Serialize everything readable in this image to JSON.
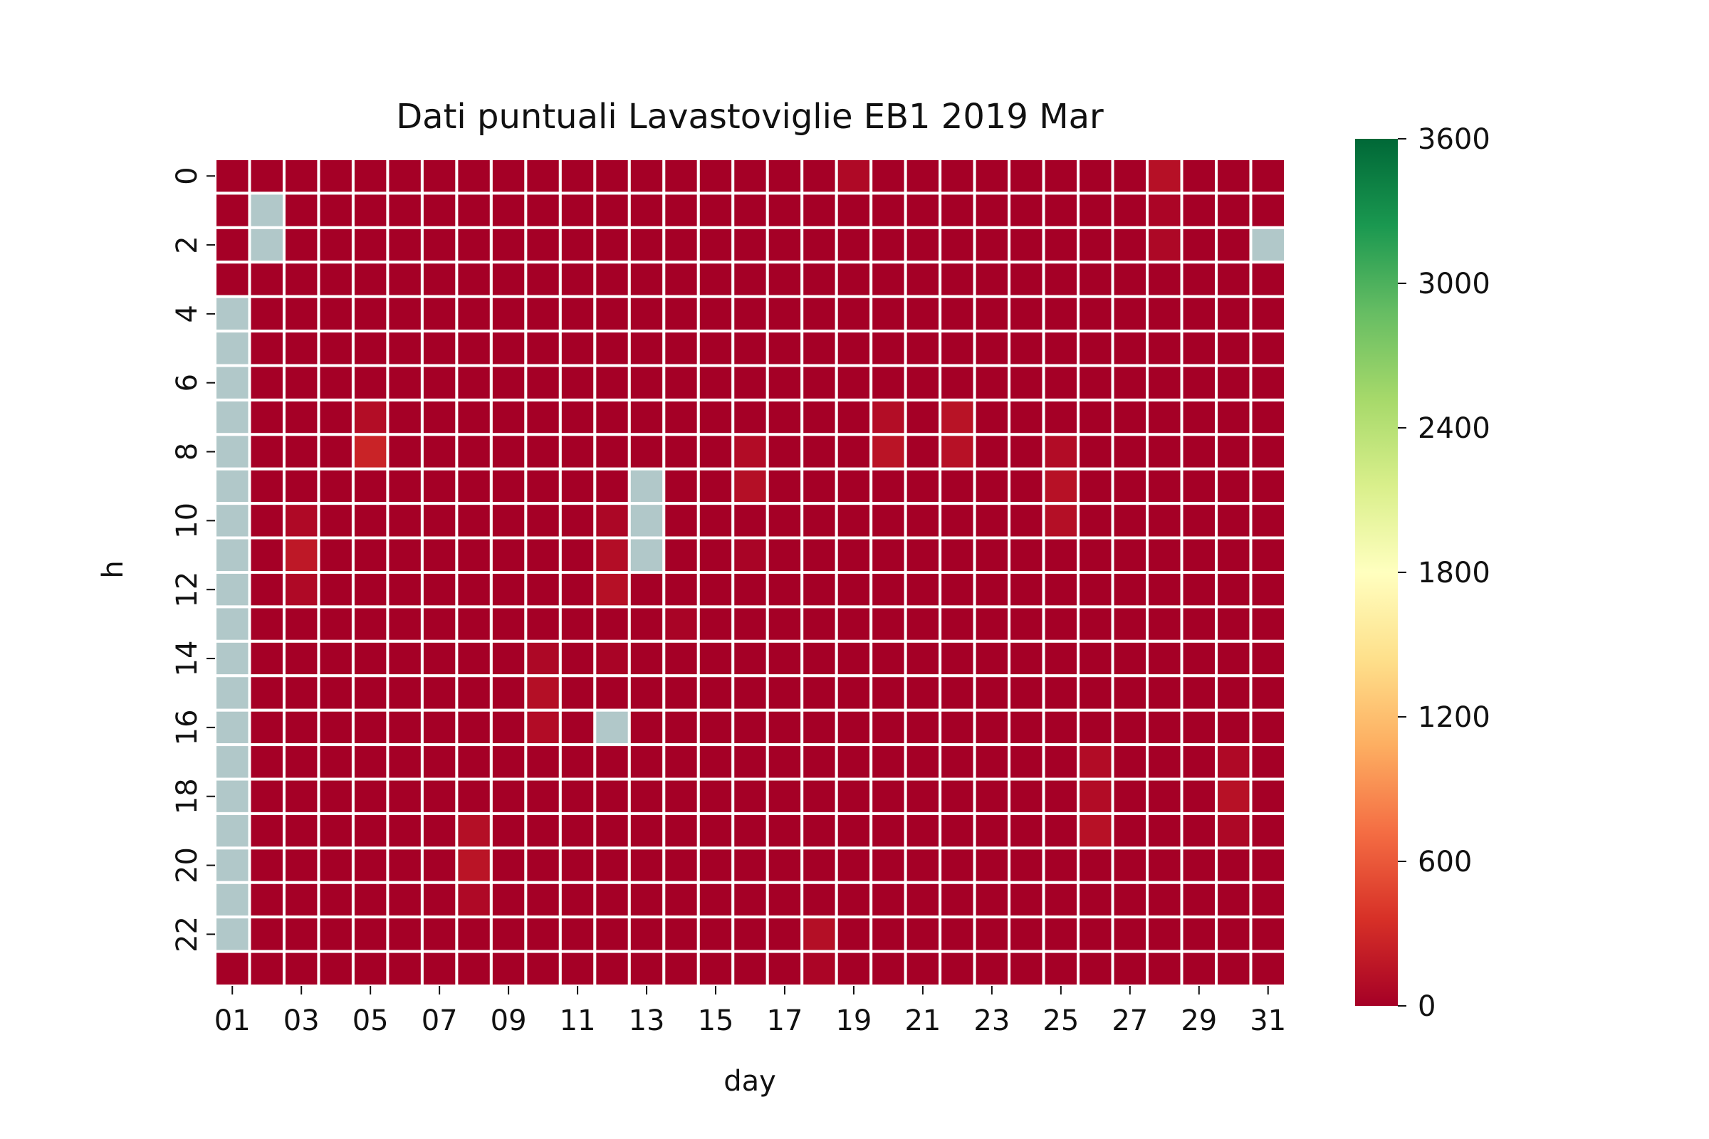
{
  "chart_data": {
    "type": "heatmap",
    "title": "Dati puntuali Lavastoviglie EB1 2019 Mar",
    "xlabel": "day",
    "ylabel": "h",
    "x": [
      "01",
      "02",
      "03",
      "04",
      "05",
      "06",
      "07",
      "08",
      "09",
      "10",
      "11",
      "12",
      "13",
      "14",
      "15",
      "16",
      "17",
      "18",
      "19",
      "20",
      "21",
      "22",
      "23",
      "24",
      "25",
      "26",
      "27",
      "28",
      "29",
      "30",
      "31"
    ],
    "y": [
      0,
      1,
      2,
      3,
      4,
      5,
      6,
      7,
      8,
      9,
      10,
      11,
      12,
      13,
      14,
      15,
      16,
      17,
      18,
      19,
      20,
      21,
      22,
      23
    ],
    "x_tick_labels": [
      "01",
      "03",
      "05",
      "07",
      "09",
      "11",
      "13",
      "15",
      "17",
      "19",
      "21",
      "23",
      "25",
      "27",
      "29",
      "31"
    ],
    "y_tick_labels": [
      "0",
      "2",
      "4",
      "6",
      "8",
      "10",
      "12",
      "14",
      "16",
      "18",
      "20",
      "22"
    ],
    "colorbar": {
      "colormap": "RdYlGn",
      "vmin": 0,
      "vmax": 3600,
      "ticks": [
        "0",
        "600",
        "1200",
        "1800",
        "2400",
        "3000",
        "3600"
      ]
    },
    "missing_color": "#b1c8c9",
    "default_value": 0,
    "missing_cells": [
      [
        1,
        1
      ],
      [
        2,
        1
      ],
      [
        2,
        30
      ],
      [
        4,
        0
      ],
      [
        5,
        0
      ],
      [
        6,
        0
      ],
      [
        7,
        0
      ],
      [
        8,
        0
      ],
      [
        9,
        0
      ],
      [
        10,
        0
      ],
      [
        11,
        0
      ],
      [
        12,
        0
      ],
      [
        13,
        0
      ],
      [
        14,
        0
      ],
      [
        15,
        0
      ],
      [
        16,
        0
      ],
      [
        17,
        0
      ],
      [
        18,
        0
      ],
      [
        19,
        0
      ],
      [
        20,
        0
      ],
      [
        21,
        0
      ],
      [
        22,
        0
      ],
      [
        9,
        12
      ],
      [
        10,
        12
      ],
      [
        11,
        12
      ],
      [
        16,
        11
      ]
    ],
    "values": [
      [
        0,
        18,
        70
      ],
      [
        0,
        27,
        120
      ],
      [
        1,
        27,
        40
      ],
      [
        2,
        27,
        60
      ],
      [
        7,
        4,
        100
      ],
      [
        8,
        4,
        260
      ],
      [
        7,
        19,
        100
      ],
      [
        8,
        19,
        150
      ],
      [
        7,
        21,
        140
      ],
      [
        8,
        21,
        130
      ],
      [
        8,
        15,
        90
      ],
      [
        9,
        15,
        110
      ],
      [
        11,
        15,
        30
      ],
      [
        8,
        24,
        90
      ],
      [
        9,
        24,
        130
      ],
      [
        10,
        24,
        110
      ],
      [
        10,
        2,
        70
      ],
      [
        11,
        2,
        180
      ],
      [
        12,
        2,
        70
      ],
      [
        10,
        11,
        50
      ],
      [
        11,
        11,
        100
      ],
      [
        12,
        11,
        120
      ],
      [
        13,
        13,
        30
      ],
      [
        14,
        9,
        60
      ],
      [
        15,
        9,
        110
      ],
      [
        16,
        9,
        90
      ],
      [
        14,
        11,
        30
      ],
      [
        17,
        25,
        90
      ],
      [
        18,
        25,
        90
      ],
      [
        19,
        25,
        130
      ],
      [
        17,
        29,
        70
      ],
      [
        18,
        29,
        130
      ],
      [
        19,
        29,
        60
      ],
      [
        19,
        7,
        110
      ],
      [
        20,
        7,
        150
      ],
      [
        21,
        7,
        70
      ],
      [
        22,
        17,
        110
      ],
      [
        23,
        17,
        40
      ]
    ]
  }
}
